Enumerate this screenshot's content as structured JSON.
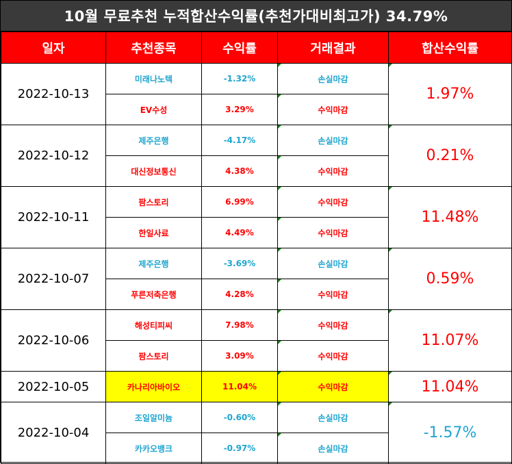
{
  "title": "10월 무료추천 누적합산수익률(추천가대비최고가) 34.79%",
  "headers": [
    "일자",
    "추천종목",
    "수익률",
    "거래결과",
    "합산수익률"
  ],
  "groups": [
    {
      "date": "2022-10-13",
      "total": "1.97%",
      "total_color": "gain",
      "rows": [
        {
          "stock": "미래나노텍",
          "rate": "-1.32%",
          "result": "손실마감",
          "color": "loss"
        },
        {
          "stock": "EV수성",
          "rate": "3.29%",
          "result": "수익마감",
          "color": "gain"
        }
      ]
    },
    {
      "date": "2022-10-12",
      "total": "0.21%",
      "total_color": "gain",
      "rows": [
        {
          "stock": "제주은행",
          "rate": "-4.17%",
          "result": "손실마감",
          "color": "loss"
        },
        {
          "stock": "대신정보통신",
          "rate": "4.38%",
          "result": "수익마감",
          "color": "gain"
        }
      ]
    },
    {
      "date": "2022-10-11",
      "total": "11.48%",
      "total_color": "gain",
      "rows": [
        {
          "stock": "팜스토리",
          "rate": "6.99%",
          "result": "수익마감",
          "color": "gain"
        },
        {
          "stock": "한일사료",
          "rate": "4.49%",
          "result": "수익마감",
          "color": "gain"
        }
      ]
    },
    {
      "date": "2022-10-07",
      "total": "0.59%",
      "total_color": "gain",
      "rows": [
        {
          "stock": "제주은행",
          "rate": "-3.69%",
          "result": "손실마감",
          "color": "loss"
        },
        {
          "stock": "푸른저축은행",
          "rate": "4.28%",
          "result": "수익마감",
          "color": "gain"
        }
      ]
    },
    {
      "date": "2022-10-06",
      "total": "11.07%",
      "total_color": "gain",
      "rows": [
        {
          "stock": "해성티피씨",
          "rate": "7.98%",
          "result": "수익마감",
          "color": "gain"
        },
        {
          "stock": "팜스토리",
          "rate": "3.09%",
          "result": "수익마감",
          "color": "gain"
        }
      ]
    },
    {
      "date": "2022-10-05",
      "total": "11.04%",
      "total_color": "gain",
      "highlight": true,
      "rows": [
        {
          "stock": "카나리아바이오",
          "rate": "11.04%",
          "result": "수익마감",
          "color": "gain"
        }
      ]
    },
    {
      "date": "2022-10-04",
      "total": "-1.57%",
      "total_color": "loss",
      "rows": [
        {
          "stock": "조일알미늄",
          "rate": "-0.60%",
          "result": "손실마감",
          "color": "loss"
        },
        {
          "stock": "카카오뱅크",
          "rate": "-0.97%",
          "result": "손실마감",
          "color": "loss"
        }
      ]
    }
  ]
}
